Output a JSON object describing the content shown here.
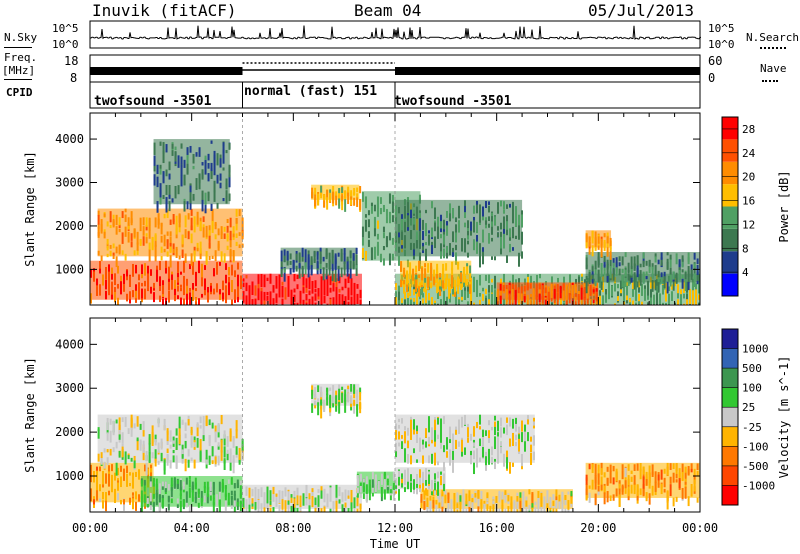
{
  "header": {
    "station": "Inuvik (fitACF)",
    "beam": "Beam 04",
    "date": "05/Jul/2013"
  },
  "left_labels": {
    "nsky": "N.Sky",
    "freq_line1": "Freq.",
    "freq_line2": "[MHz]",
    "cpid": "CPID"
  },
  "right_labels": {
    "nsearch": "N.Search",
    "nave": "Nave"
  },
  "noise_panel": {
    "left_ticks": [
      "10^5",
      "10^0"
    ],
    "right_ticks": [
      "10^5",
      "10^0"
    ]
  },
  "freq_panel": {
    "left_ticks": [
      "18",
      "8"
    ],
    "right_ticks": [
      "60",
      "0"
    ]
  },
  "cpid_segments": [
    {
      "label": "twofsound -3501",
      "start_hour": 0,
      "end_hour": 6
    },
    {
      "label": "normal (fast) 151",
      "start_hour": 6,
      "end_hour": 12
    },
    {
      "label": "twofsound -3501",
      "start_hour": 12,
      "end_hour": 24
    }
  ],
  "colors": {
    "power_scale": [
      "#0000ff",
      "#1e3c8c",
      "#3c7850",
      "#50a064",
      "#ffbe00",
      "#ff8c00",
      "#ff5000",
      "#ff0000"
    ],
    "velocity_scale": [
      "#ff0000",
      "#ff4600",
      "#ff7800",
      "#ffb400",
      "#c8c8c8",
      "#32c832",
      "#3c9650",
      "#3264b4",
      "#1e1e96"
    ]
  },
  "chart_data": [
    {
      "type": "heatmap",
      "panel": "power",
      "xlabel": "Time UT",
      "ylabel": "Slant Range [km]",
      "x_ticks": [
        "00:00",
        "04:00",
        "08:00",
        "12:00",
        "16:00",
        "20:00",
        "00:00"
      ],
      "y_ticks": [
        "1000",
        "2000",
        "3000",
        "4000"
      ],
      "xlim": [
        0,
        24
      ],
      "ylim": [
        180,
        4600
      ],
      "colorbar_label": "Power [dB]",
      "colorbar_ticks": [
        "4",
        "8",
        "12",
        "16",
        "20",
        "24",
        "28"
      ],
      "colorbar_range": [
        0,
        30
      ],
      "patches": [
        {
          "t0": 6.0,
          "t1": 10.7,
          "r0": 200,
          "r1": 900,
          "value": 29
        },
        {
          "t0": 0.0,
          "t1": 6.0,
          "r0": 300,
          "r1": 1200,
          "value": 25
        },
        {
          "t0": 0.3,
          "t1": 6.0,
          "r0": 1300,
          "r1": 2400,
          "value": 20
        },
        {
          "t0": 2.5,
          "t1": 5.5,
          "r0": 2500,
          "r1": 4000,
          "value": 8
        },
        {
          "t0": 8.7,
          "t1": 10.6,
          "r0": 2600,
          "r1": 2950,
          "value": 18
        },
        {
          "t0": 7.5,
          "t1": 10.5,
          "r0": 1000,
          "r1": 1500,
          "value": 8
        },
        {
          "t0": 10.7,
          "t1": 13.0,
          "r0": 1200,
          "r1": 2800,
          "value": 12
        },
        {
          "t0": 12.0,
          "t1": 17.0,
          "r0": 1300,
          "r1": 2600,
          "value": 10
        },
        {
          "t0": 12.0,
          "t1": 24.0,
          "r0": 200,
          "r1": 900,
          "value": 14
        },
        {
          "t0": 16.0,
          "t1": 20.0,
          "r0": 300,
          "r1": 700,
          "value": 24
        },
        {
          "t0": 12.2,
          "t1": 15.0,
          "r0": 600,
          "r1": 1200,
          "value": 18
        },
        {
          "t0": 19.5,
          "t1": 24.0,
          "r0": 700,
          "r1": 1400,
          "value": 10
        },
        {
          "t0": 19.5,
          "t1": 20.5,
          "r0": 1500,
          "r1": 1900,
          "value": 20
        }
      ]
    },
    {
      "type": "heatmap",
      "panel": "velocity",
      "xlabel": "Time UT",
      "ylabel": "Slant Range [km]",
      "x_ticks": [
        "00:00",
        "04:00",
        "08:00",
        "12:00",
        "16:00",
        "20:00",
        "00:00"
      ],
      "y_ticks": [
        "1000",
        "2000",
        "3000",
        "4000"
      ],
      "xlim": [
        0,
        24
      ],
      "ylim": [
        180,
        4600
      ],
      "colorbar_label": "Velocity [m s^-1]",
      "colorbar_ticks": [
        "1000",
        "500",
        "100",
        "25",
        "-25",
        "-100",
        "-500",
        "-1000"
      ],
      "colorbar_range": [
        -1200,
        1200
      ],
      "patches": [
        {
          "t0": 0.0,
          "t1": 2.5,
          "r0": 400,
          "r1": 1300,
          "value": -400
        },
        {
          "t0": 0.3,
          "t1": 6.0,
          "r0": 1300,
          "r1": 2400,
          "value": 0
        },
        {
          "t0": 2.0,
          "t1": 6.0,
          "r0": 300,
          "r1": 1000,
          "value": 300
        },
        {
          "t0": 6.0,
          "t1": 10.7,
          "r0": 250,
          "r1": 800,
          "value": 0
        },
        {
          "t0": 8.7,
          "t1": 10.6,
          "r0": 2600,
          "r1": 3100,
          "value": 0
        },
        {
          "t0": 10.5,
          "t1": 12.0,
          "r0": 600,
          "r1": 1100,
          "value": 200
        },
        {
          "t0": 12.0,
          "t1": 17.5,
          "r0": 1300,
          "r1": 2400,
          "value": 0
        },
        {
          "t0": 13.0,
          "t1": 19.0,
          "r0": 250,
          "r1": 700,
          "value": -150
        },
        {
          "t0": 19.5,
          "t1": 24.0,
          "r0": 500,
          "r1": 1300,
          "value": -400
        },
        {
          "t0": 12.0,
          "t1": 14.0,
          "r0": 700,
          "r1": 1200,
          "value": 80
        }
      ]
    }
  ]
}
